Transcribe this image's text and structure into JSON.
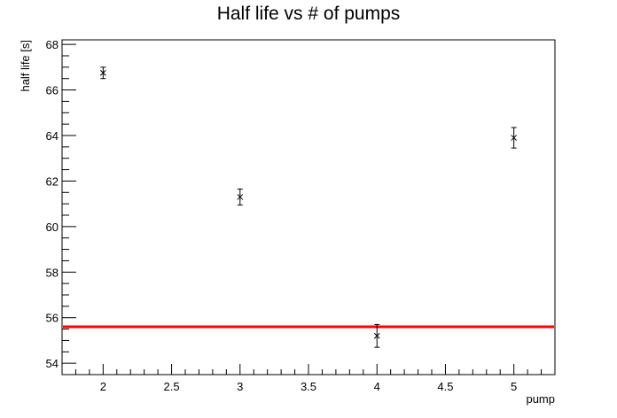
{
  "chart_data": {
    "type": "scatter",
    "title": "Half life vs # of pumps",
    "xlabel": "pump",
    "ylabel": "half life [s]",
    "xlim": [
      1.7,
      5.3
    ],
    "ylim": [
      53.5,
      68.2
    ],
    "x_ticks": [
      2,
      2.5,
      3,
      3.5,
      4,
      4.5,
      5
    ],
    "x_tick_labels": [
      "2",
      "2.5",
      "3",
      "3.5",
      "4",
      "4.5",
      "5"
    ],
    "y_ticks": [
      54,
      56,
      58,
      60,
      62,
      64,
      66,
      68
    ],
    "y_tick_labels": [
      "54",
      "56",
      "58",
      "60",
      "62",
      "64",
      "66",
      "68"
    ],
    "grid": false,
    "legend": "none",
    "series": [
      {
        "points": [
          {
            "x": 2,
            "y": 66.75,
            "yerr": 0.25
          },
          {
            "x": 3,
            "y": 61.3,
            "yerr": 0.35
          },
          {
            "x": 4,
            "y": 55.2,
            "yerr": 0.5
          },
          {
            "x": 5,
            "y": 63.9,
            "yerr": 0.45
          }
        ],
        "color": "#000000"
      }
    ],
    "reference_line": {
      "y": 55.6,
      "color": "#ff0000"
    }
  }
}
